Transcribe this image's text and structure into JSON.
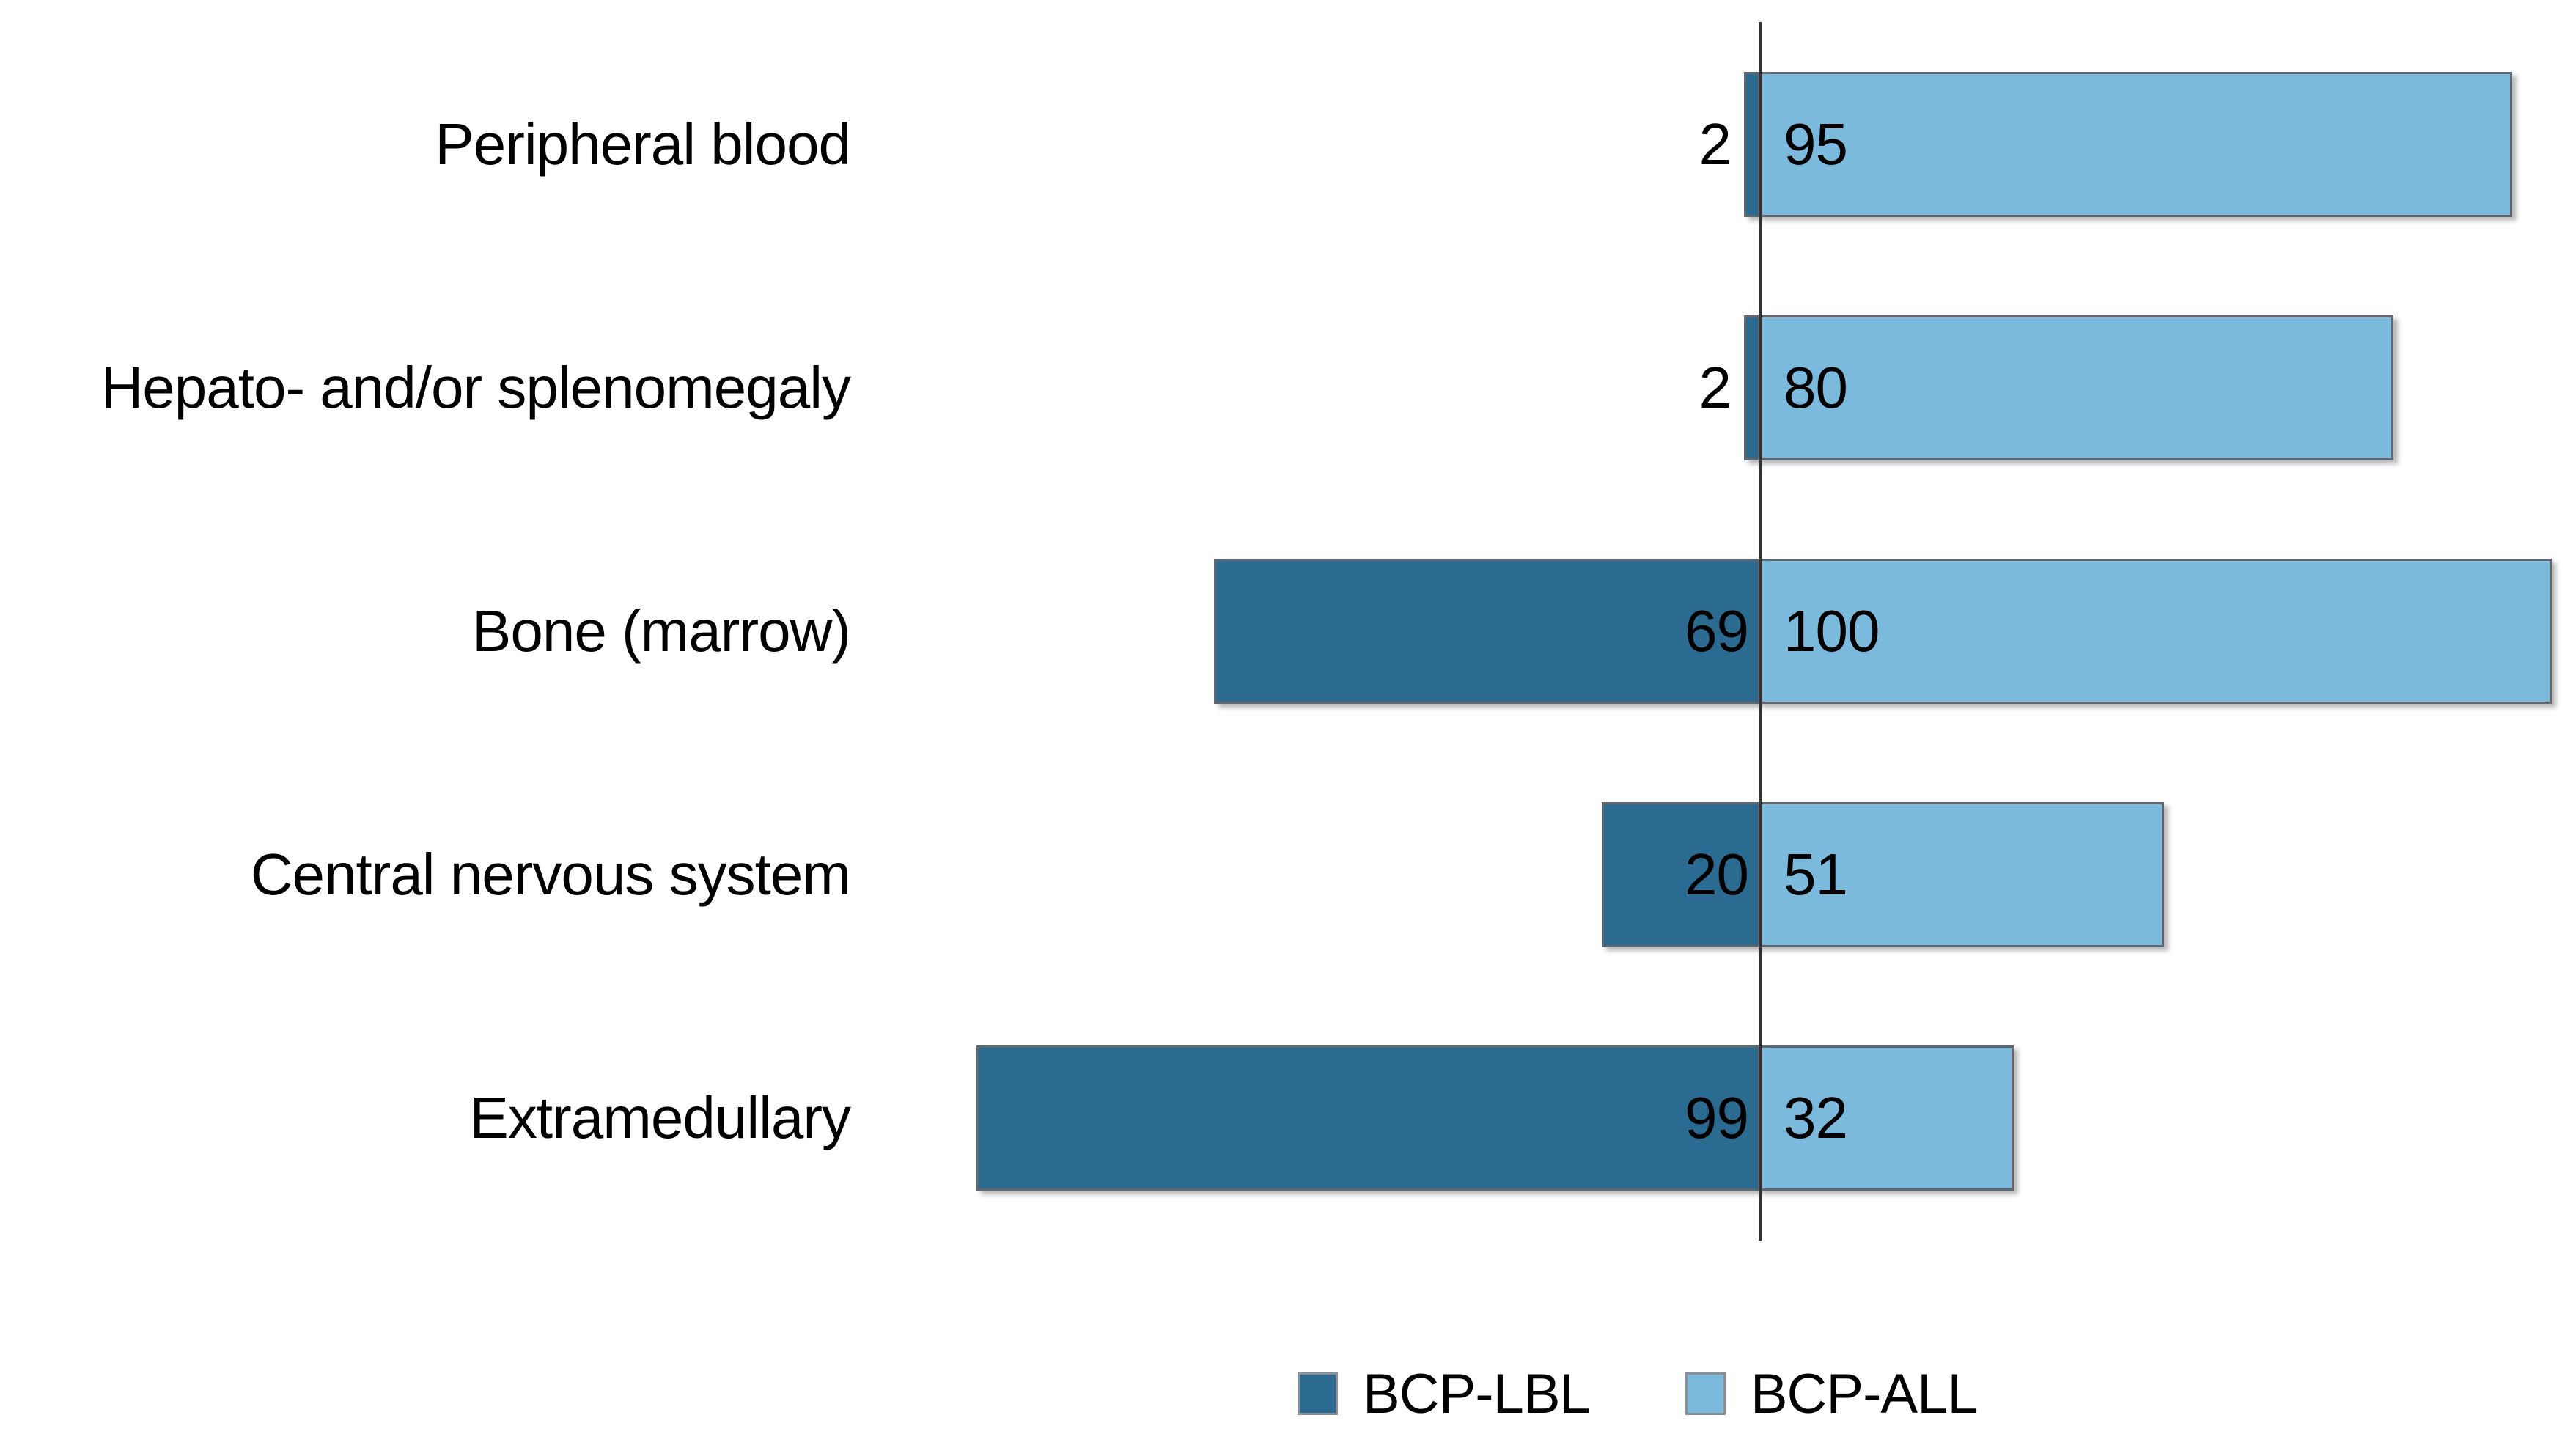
{
  "chart_data": {
    "type": "bar",
    "variant": "diverging-horizontal-tornado",
    "title": "",
    "xlabel": "",
    "ylabel": "",
    "grid": false,
    "background_color": "#ffffff",
    "text_color": "#000000",
    "bar_border_color": "#61676d",
    "baseline_axis": {
      "visible": true,
      "color": "#303234"
    },
    "value_axis": {
      "min": 0,
      "max": 100,
      "ticks_visible": false
    },
    "categories": [
      "Peripheral blood",
      "Hepato- and/or splenomegaly",
      "Bone (marrow)",
      "Central nervous system",
      "Extramedullary"
    ],
    "series": [
      {
        "name": "BCP-LBL",
        "side": "left",
        "color": "#2b6b91",
        "values": [
          2,
          2,
          69,
          20,
          99
        ]
      },
      {
        "name": "BCP-ALL",
        "side": "right",
        "color": "#7cbadd",
        "values": [
          95,
          80,
          100,
          51,
          32
        ]
      }
    ],
    "legend": {
      "position": "bottom",
      "entries": [
        {
          "label": "BCP-LBL",
          "color": "#2b6b91"
        },
        {
          "label": "BCP-ALL",
          "color": "#7cbadd"
        }
      ]
    }
  }
}
